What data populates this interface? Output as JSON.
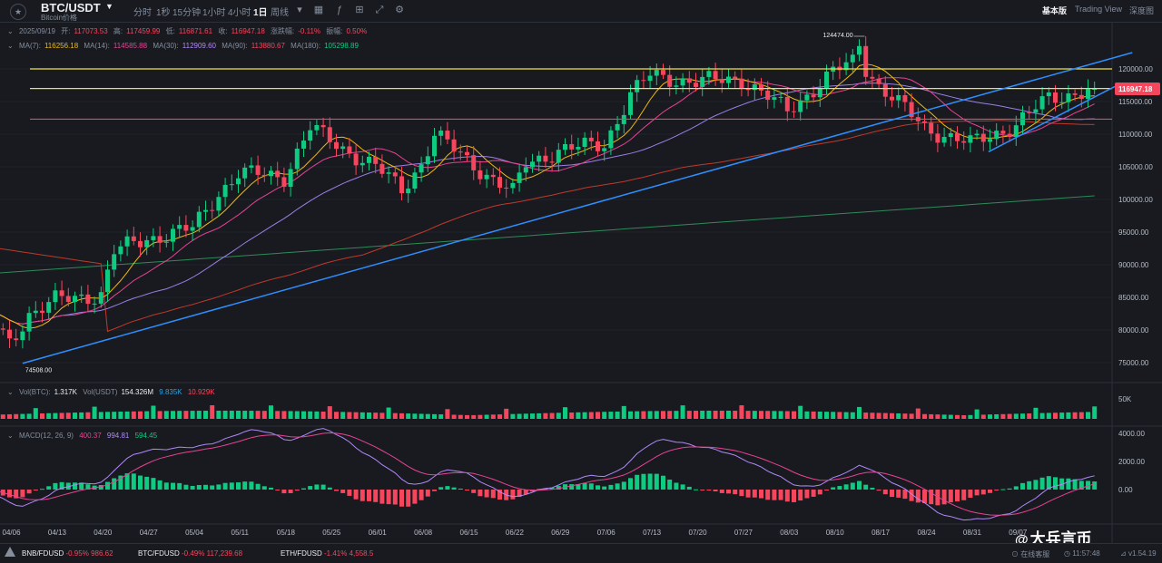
{
  "header": {
    "pair": "BTC/USDT",
    "subtitle": "Bitcoin价格",
    "timeframes": [
      "分时",
      "1秒",
      "15分钟",
      "1小时",
      "4小时",
      "1日",
      "周线"
    ],
    "active_timeframe": "1日",
    "view_tabs": [
      "基本版",
      "Trading View",
      "深度图"
    ],
    "active_view": "基本版"
  },
  "ohlc": {
    "date": "2025/09/19",
    "open_label": "开:",
    "open": "117073.53",
    "high_label": "高:",
    "high": "117459.99",
    "low_label": "低:",
    "low": "116871.61",
    "close_label": "收:",
    "close": "116947.18",
    "change_label": "涨跌幅:",
    "change": "-0.11%",
    "amplitude_label": "振幅:",
    "amplitude": "0.50%"
  },
  "ma": {
    "ma7_label": "MA(7):",
    "ma7": "116256.18",
    "ma14_label": "MA(14):",
    "ma14": "114585.88",
    "ma30_label": "MA(30):",
    "ma30": "112909.60",
    "ma90_label": "MA(90):",
    "ma90": "113880.67",
    "ma180_label": "MA(180):",
    "ma180": "105298.89"
  },
  "volume": {
    "btc_label": "Vol(BTC):",
    "btc": "1.317K",
    "usdt_label": "Vol(USDT)",
    "usdt": "154.326M",
    "v1": "9.835K",
    "v2": "10.929K",
    "axis_label": "50K"
  },
  "macd": {
    "label": "MACD(12, 26, 9)",
    "v1": "400.37",
    "v2": "994.81",
    "v3": "594.45",
    "axis": [
      "4000.00",
      "2000.00",
      "0.00"
    ]
  },
  "price_axis": [
    "120000.00",
    "115000.00",
    "110000.00",
    "105000.00",
    "100000.00",
    "95000.00",
    "90000.00",
    "85000.00",
    "80000.00",
    "75000.00"
  ],
  "current_price": "116947.18",
  "annotations": {
    "high": "124474.00",
    "low": "74508.00"
  },
  "date_axis": [
    "04/06",
    "04/13",
    "04/20",
    "04/27",
    "05/04",
    "05/11",
    "05/18",
    "05/25",
    "06/01",
    "06/08",
    "06/15",
    "06/22",
    "06/29",
    "07/06",
    "07/13",
    "07/20",
    "07/27",
    "08/03",
    "08/10",
    "08/17",
    "08/24",
    "08/31",
    "09/07"
  ],
  "tickers": [
    {
      "symbol": "BNB/FDUSD",
      "change": "-0.95%",
      "price": "986.62"
    },
    {
      "symbol": "BTC/FDUSD",
      "change": "-0.49%",
      "price": "117,239.68"
    },
    {
      "symbol": "ETH/FDUSD",
      "change": "-1.41%",
      "price": "4,558.5"
    }
  ],
  "status": {
    "connection": "在线客服",
    "time": "11:57:48",
    "version": "v1.54.19"
  },
  "watermark": "大兵言币",
  "colors": {
    "up": "#0ecb81",
    "down": "#f6465d",
    "bg": "#181a20",
    "support_yellow": "#f0e442",
    "support_red": "#e8465d",
    "trend_blue": "#2f8fff"
  },
  "chart_data": {
    "type": "candlestick",
    "x_start": "04/01",
    "x_end": "09/19",
    "ylim": [
      73000,
      126000
    ],
    "horizontal_lines": [
      {
        "price": 120000,
        "color": "yellow"
      },
      {
        "price": 117000,
        "color": "yellow"
      },
      {
        "price": 112300,
        "color": "red"
      }
    ],
    "key_points": [
      {
        "date": "04/08",
        "price": 74508,
        "label": "low"
      },
      {
        "date": "08/14",
        "price": 124474,
        "label": "high"
      },
      {
        "date": "09/19",
        "price": 116947.18,
        "label": "last"
      }
    ],
    "close_path": [
      {
        "date": "04/01",
        "close": 84000
      },
      {
        "date": "04/06",
        "close": 78000
      },
      {
        "date": "04/09",
        "close": 82500
      },
      {
        "date": "04/13",
        "close": 84500
      },
      {
        "date": "04/20",
        "close": 85500
      },
      {
        "date": "04/22",
        "close": 92000
      },
      {
        "date": "04/27",
        "close": 94000
      },
      {
        "date": "05/04",
        "close": 95500
      },
      {
        "date": "05/08",
        "close": 101000
      },
      {
        "date": "05/11",
        "close": 104000
      },
      {
        "date": "05/18",
        "close": 103500
      },
      {
        "date": "05/22",
        "close": 111000
      },
      {
        "date": "05/25",
        "close": 109000
      },
      {
        "date": "06/01",
        "close": 105000
      },
      {
        "date": "06/05",
        "close": 101500
      },
      {
        "date": "06/08",
        "close": 105500
      },
      {
        "date": "06/10",
        "close": 110000
      },
      {
        "date": "06/15",
        "close": 106000
      },
      {
        "date": "06/22",
        "close": 101000
      },
      {
        "date": "06/24",
        "close": 105500
      },
      {
        "date": "06/29",
        "close": 107500
      },
      {
        "date": "07/06",
        "close": 108500
      },
      {
        "date": "07/10",
        "close": 116000
      },
      {
        "date": "07/13",
        "close": 119000
      },
      {
        "date": "07/20",
        "close": 118000
      },
      {
        "date": "07/27",
        "close": 118500
      },
      {
        "date": "08/03",
        "close": 113500
      },
      {
        "date": "08/10",
        "close": 119500
      },
      {
        "date": "08/14",
        "close": 121500
      },
      {
        "date": "08/17",
        "close": 117500
      },
      {
        "date": "08/24",
        "close": 111000
      },
      {
        "date": "08/31",
        "close": 108500
      },
      {
        "date": "09/07",
        "close": 111500
      },
      {
        "date": "09/12",
        "close": 115500
      },
      {
        "date": "09/19",
        "close": 116947
      }
    ]
  }
}
